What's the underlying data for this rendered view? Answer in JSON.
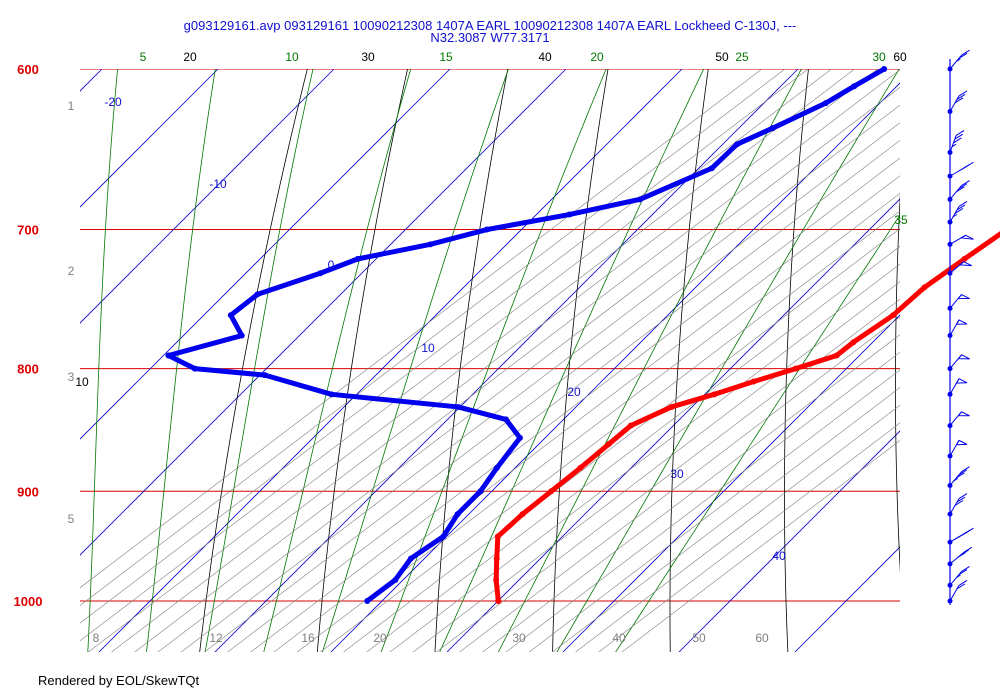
{
  "header": {
    "title_line1": "g093129161.avp 093129161 10090212308 1407A EARL  10090212308 1407A EARL Lockheed C-130J, ---",
    "title_line2": "N32.3087 W77.3171"
  },
  "footer": {
    "text": "Rendered by EOL/SkewTQt"
  },
  "chart_data": {
    "type": "skew-t",
    "pressure_axis": {
      "top": 600,
      "bottom": 1000,
      "labels": [
        "600",
        "700",
        "800",
        "900",
        "1000"
      ],
      "color": "#dd0000"
    },
    "temperature_ticks_bottom": [
      "8",
      "12",
      "16",
      "20",
      "30",
      "40",
      "50",
      "60"
    ],
    "height_labels": [
      "1",
      "2",
      "3",
      "5"
    ],
    "isotherm_labels": [
      "-20",
      "-10",
      "0",
      "10",
      "20",
      "30",
      "40"
    ],
    "dry_adiabat_labels": [
      "20",
      "30",
      "40",
      "50",
      "60",
      "10"
    ],
    "moist_adiabat_labels": [
      "5",
      "10",
      "15",
      "20",
      "25",
      "30",
      "35"
    ],
    "colors": {
      "temperature": "#ff0000",
      "dewpoint": "#0000ee",
      "isobar": "#dd0000",
      "isotherm": "#0000cc",
      "dry_adiabat": "#000000",
      "moist_adiabat": "#007700",
      "mixing_ratio": "#808080",
      "wind": "#0000ee"
    },
    "series": [
      {
        "key": "temperature",
        "points": [
          [
            600,
            49.4
          ],
          [
            620,
            48.0
          ],
          [
            640,
            47.0
          ],
          [
            660,
            44.8
          ],
          [
            680,
            40.0
          ],
          [
            700,
            37.0
          ],
          [
            720,
            35.9
          ],
          [
            740,
            34.9
          ],
          [
            760,
            34.6
          ],
          [
            780,
            33.5
          ],
          [
            790,
            33.2
          ],
          [
            800,
            30.8
          ],
          [
            810,
            28.3
          ],
          [
            820,
            26.0
          ],
          [
            830,
            23.4
          ],
          [
            845,
            21.5
          ],
          [
            860,
            21.2
          ],
          [
            880,
            20.8
          ],
          [
            900,
            20.3
          ],
          [
            920,
            19.8
          ],
          [
            940,
            19.6
          ],
          [
            960,
            21.4
          ],
          [
            980,
            23.2
          ],
          [
            1000,
            25.2
          ]
        ]
      },
      {
        "key": "dewpoint",
        "points": [
          [
            600,
            12.6
          ],
          [
            610,
            11.5
          ],
          [
            620,
            10.5
          ],
          [
            635,
            8.1
          ],
          [
            645,
            6.4
          ],
          [
            660,
            6.3
          ],
          [
            680,
            2.8
          ],
          [
            690,
            -2.0
          ],
          [
            700,
            -7.8
          ],
          [
            710,
            -11.4
          ],
          [
            720,
            -16.4
          ],
          [
            730,
            -18.4
          ],
          [
            745,
            -22.0
          ],
          [
            760,
            -22.5
          ],
          [
            775,
            -19.8
          ],
          [
            790,
            -24.4
          ],
          [
            800,
            -21.0
          ],
          [
            805,
            -14.4
          ],
          [
            820,
            -7.0
          ],
          [
            830,
            5.0
          ],
          [
            840,
            10.2
          ],
          [
            855,
            13.0
          ],
          [
            880,
            13.6
          ],
          [
            900,
            14.2
          ],
          [
            920,
            14.2
          ],
          [
            940,
            14.9
          ],
          [
            960,
            14.0
          ],
          [
            980,
            14.5
          ],
          [
            1000,
            13.9
          ]
        ]
      }
    ],
    "wind_levels": [
      {
        "p": 600,
        "spd": 25,
        "dir": 320
      },
      {
        "p": 625,
        "spd": 30,
        "dir": 330
      },
      {
        "p": 650,
        "spd": 35,
        "dir": 340
      },
      {
        "p": 665,
        "spd": 30,
        "dir": 300
      },
      {
        "p": 680,
        "spd": 30,
        "dir": 320
      },
      {
        "p": 695,
        "spd": 35,
        "dir": 330
      },
      {
        "p": 710,
        "spd": 50,
        "dir": 300
      },
      {
        "p": 730,
        "spd": 50,
        "dir": 310
      },
      {
        "p": 755,
        "spd": 50,
        "dir": 320
      },
      {
        "p": 775,
        "spd": 50,
        "dir": 330
      },
      {
        "p": 800,
        "spd": 50,
        "dir": 320
      },
      {
        "p": 820,
        "spd": 50,
        "dir": 330
      },
      {
        "p": 845,
        "spd": 50,
        "dir": 320
      },
      {
        "p": 870,
        "spd": 50,
        "dir": 330
      },
      {
        "p": 895,
        "spd": 35,
        "dir": 320
      },
      {
        "p": 920,
        "spd": 30,
        "dir": 330
      },
      {
        "p": 945,
        "spd": 35,
        "dir": 300
      },
      {
        "p": 965,
        "spd": 30,
        "dir": 310
      },
      {
        "p": 985,
        "spd": 25,
        "dir": 320
      },
      {
        "p": 1000,
        "spd": 20,
        "dir": 330
      }
    ]
  }
}
